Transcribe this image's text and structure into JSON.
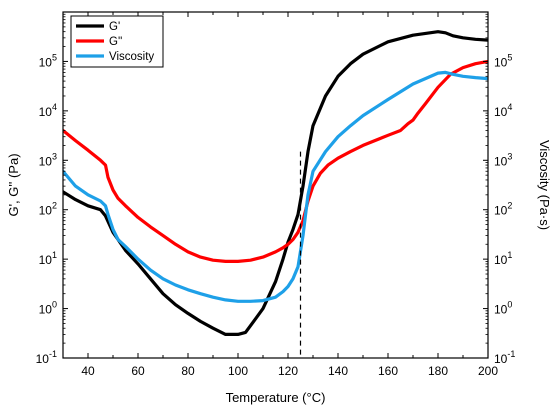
{
  "chart_data": {
    "type": "line",
    "title": "",
    "xlabel": "Temperature (°C)",
    "ylabel_left": "G', G'' (Pa)",
    "ylabel_right": "Viscosity (Pa·s)",
    "xlim": [
      30,
      200
    ],
    "ylim_left": [
      0.1,
      1000000
    ],
    "ylim_right": [
      0.1,
      1000000
    ],
    "y_scale": "log",
    "x_ticks": [
      "40",
      "60",
      "80",
      "100",
      "120",
      "140",
      "160",
      "180",
      "200"
    ],
    "y_ticks_left": [
      {
        "base": "10",
        "exp": "-1"
      },
      {
        "base": "10",
        "exp": "0"
      },
      {
        "base": "10",
        "exp": "1"
      },
      {
        "base": "10",
        "exp": "2"
      },
      {
        "base": "10",
        "exp": "3"
      },
      {
        "base": "10",
        "exp": "4"
      },
      {
        "base": "10",
        "exp": "5"
      }
    ],
    "y_ticks_right": [
      {
        "base": "10",
        "exp": "-1"
      },
      {
        "base": "10",
        "exp": "0"
      },
      {
        "base": "10",
        "exp": "1"
      },
      {
        "base": "10",
        "exp": "2"
      },
      {
        "base": "10",
        "exp": "3"
      },
      {
        "base": "10",
        "exp": "4"
      },
      {
        "base": "10",
        "exp": "5"
      }
    ],
    "grid": false,
    "legend_position": "top-left",
    "vertical_reference_line": {
      "x": 125,
      "style": "dashed"
    },
    "series": [
      {
        "name": "G'",
        "color": "#000000",
        "x": [
          30,
          35,
          40,
          45,
          47,
          50,
          52,
          55,
          60,
          65,
          70,
          75,
          80,
          85,
          90,
          95,
          100,
          103,
          105,
          110,
          115,
          118,
          120,
          122,
          124,
          126,
          128,
          130,
          135,
          140,
          145,
          150,
          160,
          170,
          180,
          183,
          186,
          190,
          195,
          200
        ],
        "y": [
          230,
          160,
          120,
          100,
          75,
          35,
          25,
          15,
          8,
          4,
          2,
          1.2,
          0.8,
          0.55,
          0.4,
          0.3,
          0.3,
          0.33,
          0.45,
          1,
          3.5,
          10,
          22,
          40,
          80,
          300,
          1500,
          5000,
          20000,
          50000,
          90000,
          140000,
          250000,
          340000,
          400000,
          380000,
          330000,
          300000,
          280000,
          270000
        ]
      },
      {
        "name": "G''",
        "color": "#ff0000",
        "x": [
          30,
          35,
          40,
          45,
          47,
          48,
          50,
          52,
          55,
          60,
          65,
          70,
          75,
          80,
          85,
          90,
          95,
          100,
          105,
          110,
          115,
          118,
          120,
          122,
          124,
          126,
          128,
          130,
          133,
          136,
          140,
          145,
          150,
          160,
          165,
          168,
          170,
          172,
          175,
          180,
          185,
          190,
          195,
          200
        ],
        "y": [
          4000,
          2500,
          1600,
          1000,
          800,
          450,
          250,
          170,
          120,
          70,
          45,
          30,
          20,
          14,
          11,
          9.5,
          9,
          9,
          9.5,
          11,
          14,
          17,
          20,
          25,
          35,
          60,
          150,
          300,
          550,
          800,
          1100,
          1500,
          2000,
          3200,
          4000,
          5500,
          6500,
          9000,
          14000,
          30000,
          55000,
          75000,
          90000,
          100000
        ]
      },
      {
        "name": "Viscosity",
        "color": "#1ea0e8",
        "x": [
          30,
          35,
          40,
          45,
          47,
          48,
          50,
          52,
          55,
          60,
          65,
          70,
          75,
          80,
          85,
          90,
          95,
          100,
          105,
          110,
          115,
          118,
          120,
          122,
          124,
          126,
          128,
          130,
          135,
          140,
          145,
          150,
          160,
          170,
          180,
          183,
          186,
          190,
          195,
          200
        ],
        "y": [
          600,
          300,
          200,
          150,
          120,
          80,
          40,
          25,
          18,
          10,
          6,
          4,
          3,
          2.4,
          2,
          1.7,
          1.5,
          1.4,
          1.4,
          1.45,
          1.7,
          2.2,
          2.8,
          4,
          7,
          30,
          200,
          600,
          1500,
          3000,
          5000,
          8000,
          17000,
          35000,
          58000,
          60000,
          55000,
          50000,
          47000,
          45000
        ]
      }
    ]
  }
}
